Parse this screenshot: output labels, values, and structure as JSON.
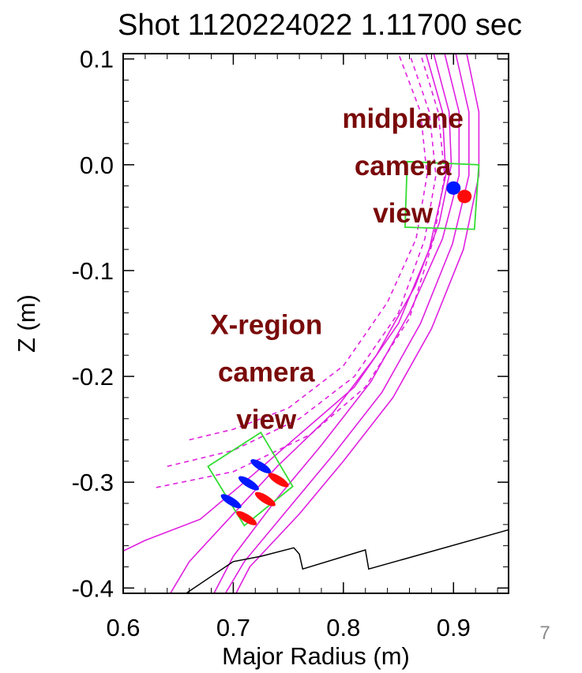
{
  "page_number": "7",
  "chart_data": {
    "type": "line",
    "title": "Shot 1120224022 1.11700 sec",
    "xlabel": "Major Radius (m)",
    "ylabel": "Z (m)",
    "xlim": [
      0.6,
      0.95
    ],
    "ylim": [
      -0.405,
      0.105
    ],
    "xticks": [
      "0.6",
      "0.7",
      "0.8",
      "0.9"
    ],
    "yticks": [
      "0.1",
      "0.0",
      "-0.1",
      "-0.2",
      "-0.3",
      "-0.4"
    ],
    "xtick_values": [
      0.6,
      0.7,
      0.8,
      0.9
    ],
    "ytick_values": [
      0.1,
      0.0,
      -0.1,
      -0.2,
      -0.3,
      -0.4
    ],
    "colors": {
      "flux": "#e020e0",
      "wall": "#000000",
      "box": "#33dd33",
      "annotation": "#7a0a0a",
      "blue_marker": "#0018ff",
      "red_marker": "#ff0a0a"
    },
    "annotations": [
      {
        "lines": [
          "midplane",
          "camera",
          "view"
        ],
        "x": 0.854,
        "y": 0.035
      },
      {
        "lines": [
          "X-region",
          "camera",
          "view"
        ],
        "x": 0.73,
        "y": -0.16
      }
    ],
    "flux_surfaces_dashed": [
      {
        "points": [
          [
            0.66,
            -0.26
          ],
          [
            0.7,
            -0.25
          ],
          [
            0.75,
            -0.23
          ],
          [
            0.8,
            -0.19
          ],
          [
            0.84,
            -0.13
          ],
          [
            0.866,
            -0.07
          ],
          [
            0.876,
            -0.01
          ],
          [
            0.87,
            0.05
          ],
          [
            0.85,
            0.105
          ]
        ]
      },
      {
        "points": [
          [
            0.64,
            -0.285
          ],
          [
            0.7,
            -0.27
          ],
          [
            0.76,
            -0.24
          ],
          [
            0.81,
            -0.2
          ],
          [
            0.85,
            -0.14
          ],
          [
            0.874,
            -0.07
          ],
          [
            0.884,
            -0.01
          ],
          [
            0.878,
            0.05
          ],
          [
            0.86,
            0.105
          ]
        ]
      },
      {
        "points": [
          [
            0.63,
            -0.305
          ],
          [
            0.7,
            -0.29
          ],
          [
            0.77,
            -0.255
          ],
          [
            0.82,
            -0.21
          ],
          [
            0.86,
            -0.145
          ],
          [
            0.882,
            -0.07
          ],
          [
            0.892,
            -0.01
          ],
          [
            0.886,
            0.05
          ],
          [
            0.87,
            0.105
          ]
        ]
      }
    ],
    "flux_surfaces_solid": [
      {
        "points": [
          [
            0.6,
            -0.365
          ],
          [
            0.62,
            -0.355
          ],
          [
            0.67,
            -0.335
          ],
          [
            0.71,
            -0.3
          ],
          [
            0.76,
            -0.255
          ],
          [
            0.81,
            -0.21
          ],
          [
            0.85,
            -0.15
          ],
          [
            0.878,
            -0.08
          ],
          [
            0.893,
            -0.01
          ],
          [
            0.89,
            0.05
          ],
          [
            0.875,
            0.105
          ]
        ]
      },
      {
        "points": [
          [
            0.64,
            -0.41
          ],
          [
            0.66,
            -0.375
          ],
          [
            0.7,
            -0.33
          ],
          [
            0.74,
            -0.285
          ],
          [
            0.79,
            -0.235
          ],
          [
            0.83,
            -0.18
          ],
          [
            0.865,
            -0.115
          ],
          [
            0.887,
            -0.055
          ],
          [
            0.898,
            0.0
          ],
          [
            0.896,
            0.05
          ],
          [
            0.882,
            0.105
          ]
        ]
      },
      {
        "points": [
          [
            0.68,
            -0.41
          ],
          [
            0.7,
            -0.37
          ],
          [
            0.74,
            -0.315
          ],
          [
            0.78,
            -0.265
          ],
          [
            0.825,
            -0.205
          ],
          [
            0.86,
            -0.14
          ],
          [
            0.89,
            -0.07
          ],
          [
            0.905,
            -0.01
          ],
          [
            0.905,
            0.05
          ],
          [
            0.892,
            0.105
          ]
        ]
      },
      {
        "points": [
          [
            0.69,
            -0.41
          ],
          [
            0.71,
            -0.375
          ],
          [
            0.75,
            -0.325
          ],
          [
            0.79,
            -0.275
          ],
          [
            0.835,
            -0.215
          ],
          [
            0.87,
            -0.15
          ],
          [
            0.899,
            -0.075
          ],
          [
            0.914,
            -0.01
          ],
          [
            0.914,
            0.05
          ],
          [
            0.902,
            0.105
          ]
        ]
      },
      {
        "points": [
          [
            0.7,
            -0.41
          ],
          [
            0.715,
            -0.38
          ],
          [
            0.76,
            -0.33
          ],
          [
            0.8,
            -0.28
          ],
          [
            0.845,
            -0.22
          ],
          [
            0.88,
            -0.155
          ],
          [
            0.909,
            -0.08
          ],
          [
            0.923,
            -0.01
          ],
          [
            0.923,
            0.05
          ],
          [
            0.912,
            0.105
          ]
        ]
      }
    ],
    "wall": [
      [
        0.65,
        -0.41
      ],
      [
        0.7,
        -0.375
      ],
      [
        0.725,
        -0.37
      ],
      [
        0.755,
        -0.362
      ],
      [
        0.76,
        -0.368
      ],
      [
        0.763,
        -0.382
      ],
      [
        0.82,
        -0.364
      ],
      [
        0.823,
        -0.382
      ],
      [
        0.95,
        -0.345
      ]
    ],
    "camera_boxes": [
      {
        "corners": [
          [
            0.858,
            0.003
          ],
          [
            0.923,
            0.0
          ],
          [
            0.919,
            -0.061
          ],
          [
            0.856,
            -0.059
          ]
        ]
      },
      {
        "corners": [
          [
            0.677,
            -0.285
          ],
          [
            0.725,
            -0.253
          ],
          [
            0.754,
            -0.304
          ],
          [
            0.71,
            -0.341
          ]
        ]
      }
    ],
    "markers_midplane": [
      {
        "x": 0.9,
        "y": -0.022,
        "color": "blue"
      },
      {
        "x": 0.91,
        "y": -0.03,
        "color": "red"
      }
    ],
    "markers_xregion": [
      {
        "x": 0.725,
        "y": -0.285,
        "color": "blue"
      },
      {
        "x": 0.714,
        "y": -0.301,
        "color": "blue"
      },
      {
        "x": 0.698,
        "y": -0.318,
        "color": "blue"
      },
      {
        "x": 0.741,
        "y": -0.298,
        "color": "red"
      },
      {
        "x": 0.729,
        "y": -0.316,
        "color": "red"
      },
      {
        "x": 0.712,
        "y": -0.334,
        "color": "red"
      }
    ]
  }
}
